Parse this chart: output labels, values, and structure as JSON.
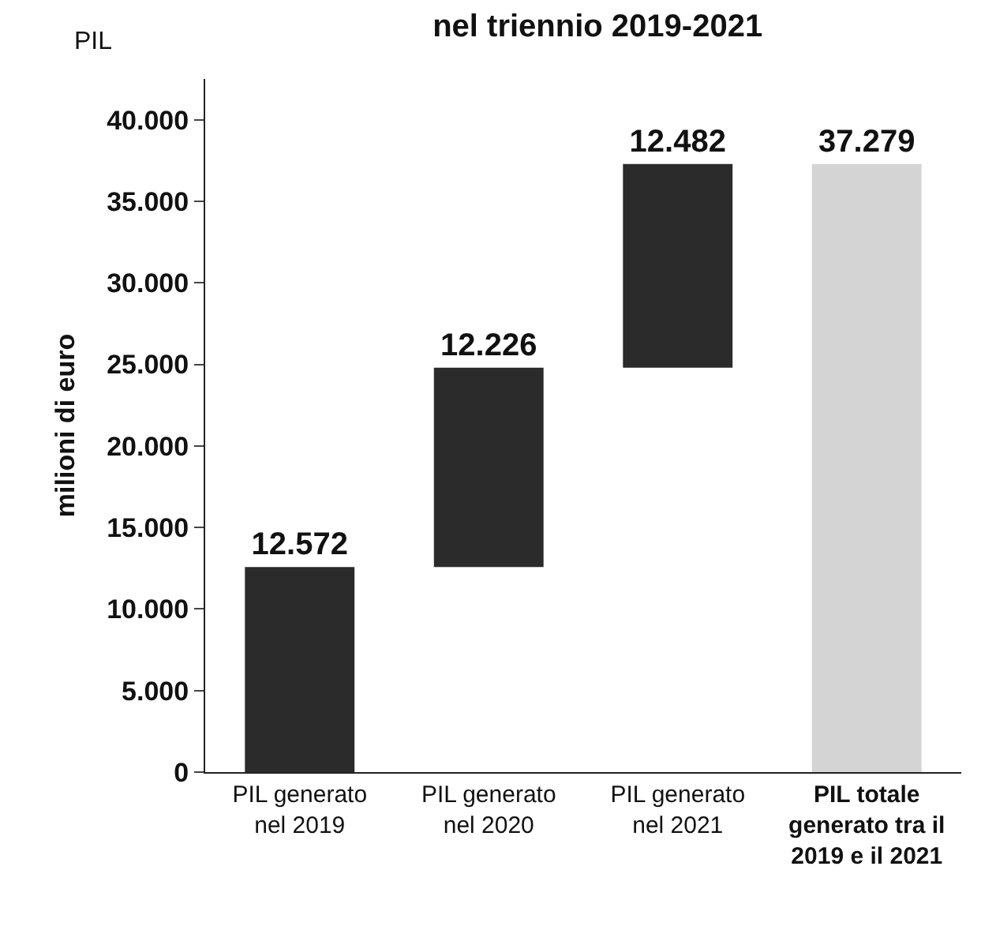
{
  "chart_data": {
    "type": "bar",
    "title": "nel triennio 2019-2021",
    "ylabel": "milioni di euro",
    "annotations": [
      "PIL"
    ],
    "categories": [
      "PIL generato\nnel 2019",
      "PIL generato\nnel 2020",
      "PIL generato\nnel 2021",
      "PIL totale\ngenerato tra il\n2019 e il 2021"
    ],
    "values": [
      12572,
      12226,
      12482,
      37279
    ],
    "base": [
      0,
      12572,
      24798,
      0
    ],
    "colors": [
      "#2b2b2b",
      "#2b2b2b",
      "#2b2b2b",
      "#d4d4d4"
    ],
    "value_labels": [
      "12.572",
      "12.226",
      "12.482",
      "37.279"
    ],
    "ylim": [
      0,
      42500
    ],
    "yticks": [
      {
        "value": 0,
        "label": "0"
      },
      {
        "value": 5000,
        "label": "5.000"
      },
      {
        "value": 10000,
        "label": "10.000"
      },
      {
        "value": 15000,
        "label": "15.000"
      },
      {
        "value": 20000,
        "label": "20.000"
      },
      {
        "value": 25000,
        "label": "25.000"
      },
      {
        "value": 30000,
        "label": "30.000"
      },
      {
        "value": 35000,
        "label": "35.000"
      },
      {
        "value": 40000,
        "label": "40.000"
      }
    ]
  }
}
